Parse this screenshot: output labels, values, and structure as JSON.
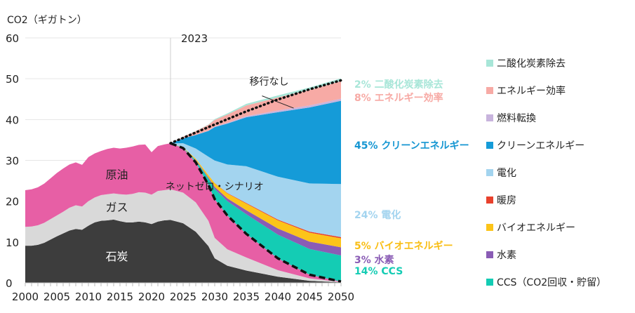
{
  "chart_data": {
    "type": "area",
    "ylabel": "CO2（ギガトン）",
    "xlabel": "",
    "ylim": [
      0,
      60
    ],
    "xlim": [
      2000,
      2050
    ],
    "yticks": [
      "0",
      "10",
      "20",
      "30",
      "40",
      "50",
      "60"
    ],
    "xticks": [
      "2000",
      "2005",
      "2010",
      "2015",
      "2020",
      "2025",
      "2030",
      "2035",
      "2040",
      "2045",
      "2050"
    ],
    "grid": true,
    "marker_year": "2023",
    "history": {
      "x": [
        2000,
        2001,
        2002,
        2003,
        2004,
        2005,
        2006,
        2007,
        2008,
        2009,
        2010,
        2011,
        2012,
        2013,
        2014,
        2015,
        2016,
        2017,
        2018,
        2019,
        2020,
        2021,
        2022,
        2023
      ],
      "series": [
        {
          "name": "石炭",
          "color": "#3d3d3d",
          "values": [
            9.1,
            9.1,
            9.3,
            9.8,
            10.6,
            11.4,
            12.1,
            12.8,
            13.2,
            13.0,
            14.0,
            14.8,
            15.2,
            15.3,
            15.5,
            15.1,
            14.8,
            14.8,
            15.0,
            14.8,
            14.4,
            15.0,
            15.3,
            15.4
          ]
        },
        {
          "name": "ガス",
          "color": "#d9d9d9",
          "values": [
            4.6,
            4.7,
            4.8,
            4.9,
            5.0,
            5.1,
            5.3,
            5.6,
            5.8,
            5.7,
            6.0,
            6.1,
            6.3,
            6.4,
            6.4,
            6.6,
            6.8,
            7.0,
            7.2,
            7.3,
            7.2,
            7.5,
            7.4,
            7.5
          ]
        },
        {
          "name": "原油",
          "color": "#e75fa5",
          "values": [
            9.0,
            9.1,
            9.3,
            9.6,
            10.0,
            10.4,
            10.6,
            10.6,
            10.5,
            10.2,
            10.8,
            10.8,
            10.8,
            11.1,
            11.2,
            11.2,
            11.5,
            11.6,
            11.6,
            11.8,
            10.4,
            11.0,
            11.2,
            11.3
          ]
        }
      ]
    },
    "no_transition": {
      "label": "移行なし",
      "x": [
        2023,
        2025,
        2030,
        2035,
        2040,
        2045,
        2050
      ],
      "values": [
        34.2,
        35.5,
        38.8,
        42.0,
        44.9,
        47.4,
        49.6
      ]
    },
    "net_zero": {
      "label": "ネットゼロ・シナリオ",
      "x": [
        2023,
        2025,
        2027,
        2029,
        2030,
        2032,
        2035,
        2040,
        2045,
        2050
      ],
      "values": [
        34.2,
        33.0,
        29.5,
        24.0,
        20.5,
        16.5,
        12.0,
        6.0,
        2.0,
        0.3
      ],
      "fossil_x": [
        2023,
        2025,
        2027,
        2029,
        2030,
        2032,
        2035,
        2040,
        2045,
        2050
      ],
      "fossil": {
        "石炭": [
          15.4,
          14.6,
          12.5,
          9.0,
          6.0,
          4.2,
          3.0,
          1.5,
          0.5,
          0.1
        ],
        "ガス": [
          7.5,
          7.5,
          7.2,
          6.2,
          5.0,
          4.0,
          3.2,
          1.6,
          0.6,
          0.1
        ],
        "原油": [
          11.3,
          10.9,
          9.8,
          8.8,
          9.5,
          8.3,
          5.8,
          2.9,
          0.9,
          0.1
        ]
      }
    },
    "wedges": {
      "x": [
        2023,
        2025,
        2027,
        2029,
        2030,
        2032,
        2035,
        2040,
        2045,
        2050
      ],
      "series": [
        {
          "name": "CCS（CO2回収・貯留）",
          "short": "CCS",
          "share": "14%",
          "color": "#14ccb4",
          "values": [
            0,
            0.1,
            0.5,
            1.5,
            2.5,
            3.5,
            4.8,
            5.8,
            6.3,
            6.4
          ]
        },
        {
          "name": "水素",
          "short": "水素",
          "share": "3%",
          "color": "#8a5cb5",
          "values": [
            0,
            0,
            0.1,
            0.3,
            0.5,
            0.7,
            1.0,
            1.5,
            1.8,
            2.0
          ]
        },
        {
          "name": "バイオエネルギー",
          "short": "バイオエネルギー",
          "share": "5%",
          "color": "#fcc419",
          "values": [
            0,
            0.1,
            0.3,
            0.6,
            0.9,
            1.2,
            1.6,
            2.0,
            2.2,
            2.2
          ]
        },
        {
          "name": "暖房",
          "short": "",
          "share": "",
          "color": "#e8412c",
          "values": [
            0,
            0,
            0,
            0,
            0.05,
            0.1,
            0.15,
            0.2,
            0.25,
            0.3
          ]
        },
        {
          "name": "電化",
          "short": "電化",
          "share": "24%",
          "color": "#a3d4ef",
          "values": [
            0,
            1.0,
            2.5,
            4.5,
            5.5,
            7.0,
            9.0,
            10.5,
            11.8,
            13.0
          ]
        },
        {
          "name": "クリーンエネルギー",
          "short": "クリーンエネルギー",
          "share": "45%",
          "color": "#159bd8",
          "values": [
            0,
            1.2,
            3.3,
            6.3,
            8.2,
            10.0,
            12.0,
            15.8,
            18.6,
            20.4
          ]
        },
        {
          "name": "燃料転換",
          "short": "",
          "share": "",
          "color": "#c8b4dd",
          "values": [
            0,
            0,
            0.05,
            0.1,
            0.15,
            0.2,
            0.3,
            0.4,
            0.5,
            0.5
          ]
        },
        {
          "name": "エネルギー効率",
          "short": "エネルギー効率",
          "share": "8%",
          "color": "#f7aaa5",
          "values": [
            0,
            0.4,
            0.9,
            1.4,
            1.6,
            2.0,
            2.6,
            3.2,
            3.8,
            4.3
          ]
        },
        {
          "name": "二酸化炭素除去",
          "short": "二酸化炭素除去",
          "share": "2%",
          "color": "#a8e6d8",
          "values": [
            0,
            0,
            0.05,
            0.1,
            0.2,
            0.3,
            0.4,
            0.5,
            0.6,
            0.7
          ]
        }
      ]
    },
    "legend": [
      {
        "name": "二酸化炭素除去",
        "color": "#a8e6d8"
      },
      {
        "name": "エネルギー効率",
        "color": "#f7aaa5"
      },
      {
        "name": "燃料転換",
        "color": "#c8b4dd"
      },
      {
        "name": "クリーンエネルギー",
        "color": "#159bd8"
      },
      {
        "name": "電化",
        "color": "#a3d4ef"
      },
      {
        "name": "暖房",
        "color": "#e8412c"
      },
      {
        "name": "バイオエネルギー",
        "color": "#fcc419"
      },
      {
        "name": "水素",
        "color": "#8a5cb5"
      },
      {
        "name": "CCS（CO2回収・貯留）",
        "color": "#14ccb4"
      }
    ],
    "end_labels": [
      {
        "text": "2% 二酸化炭素除去",
        "color": "#a8e6d8",
        "y": 48.9
      },
      {
        "text": "8% エネルギー効率",
        "color": "#f7aaa5",
        "y": 45.5
      },
      {
        "text": "45% クリーンエネルギー",
        "color": "#1596d2",
        "y": 33.8
      },
      {
        "text": "24% 電化",
        "color": "#a3d4ef",
        "y": 16.8
      },
      {
        "text": "5% バイオエネルギー",
        "color": "#f9be15",
        "y": 9.2
      },
      {
        "text": "3% 水素",
        "color": "#8a5cb5",
        "y": 5.9
      },
      {
        "text": "14% CCS",
        "color": "#14ccb4",
        "y": 2.5
      }
    ],
    "area_labels": [
      {
        "text": "石炭",
        "x": 2014.5,
        "y": 6.5,
        "color": "#ffffff"
      },
      {
        "text": "ガス",
        "x": 2014.5,
        "y": 18.6,
        "color": "#222222"
      },
      {
        "text": "原油",
        "x": 2014.5,
        "y": 26.6,
        "color": "#222222"
      }
    ]
  }
}
